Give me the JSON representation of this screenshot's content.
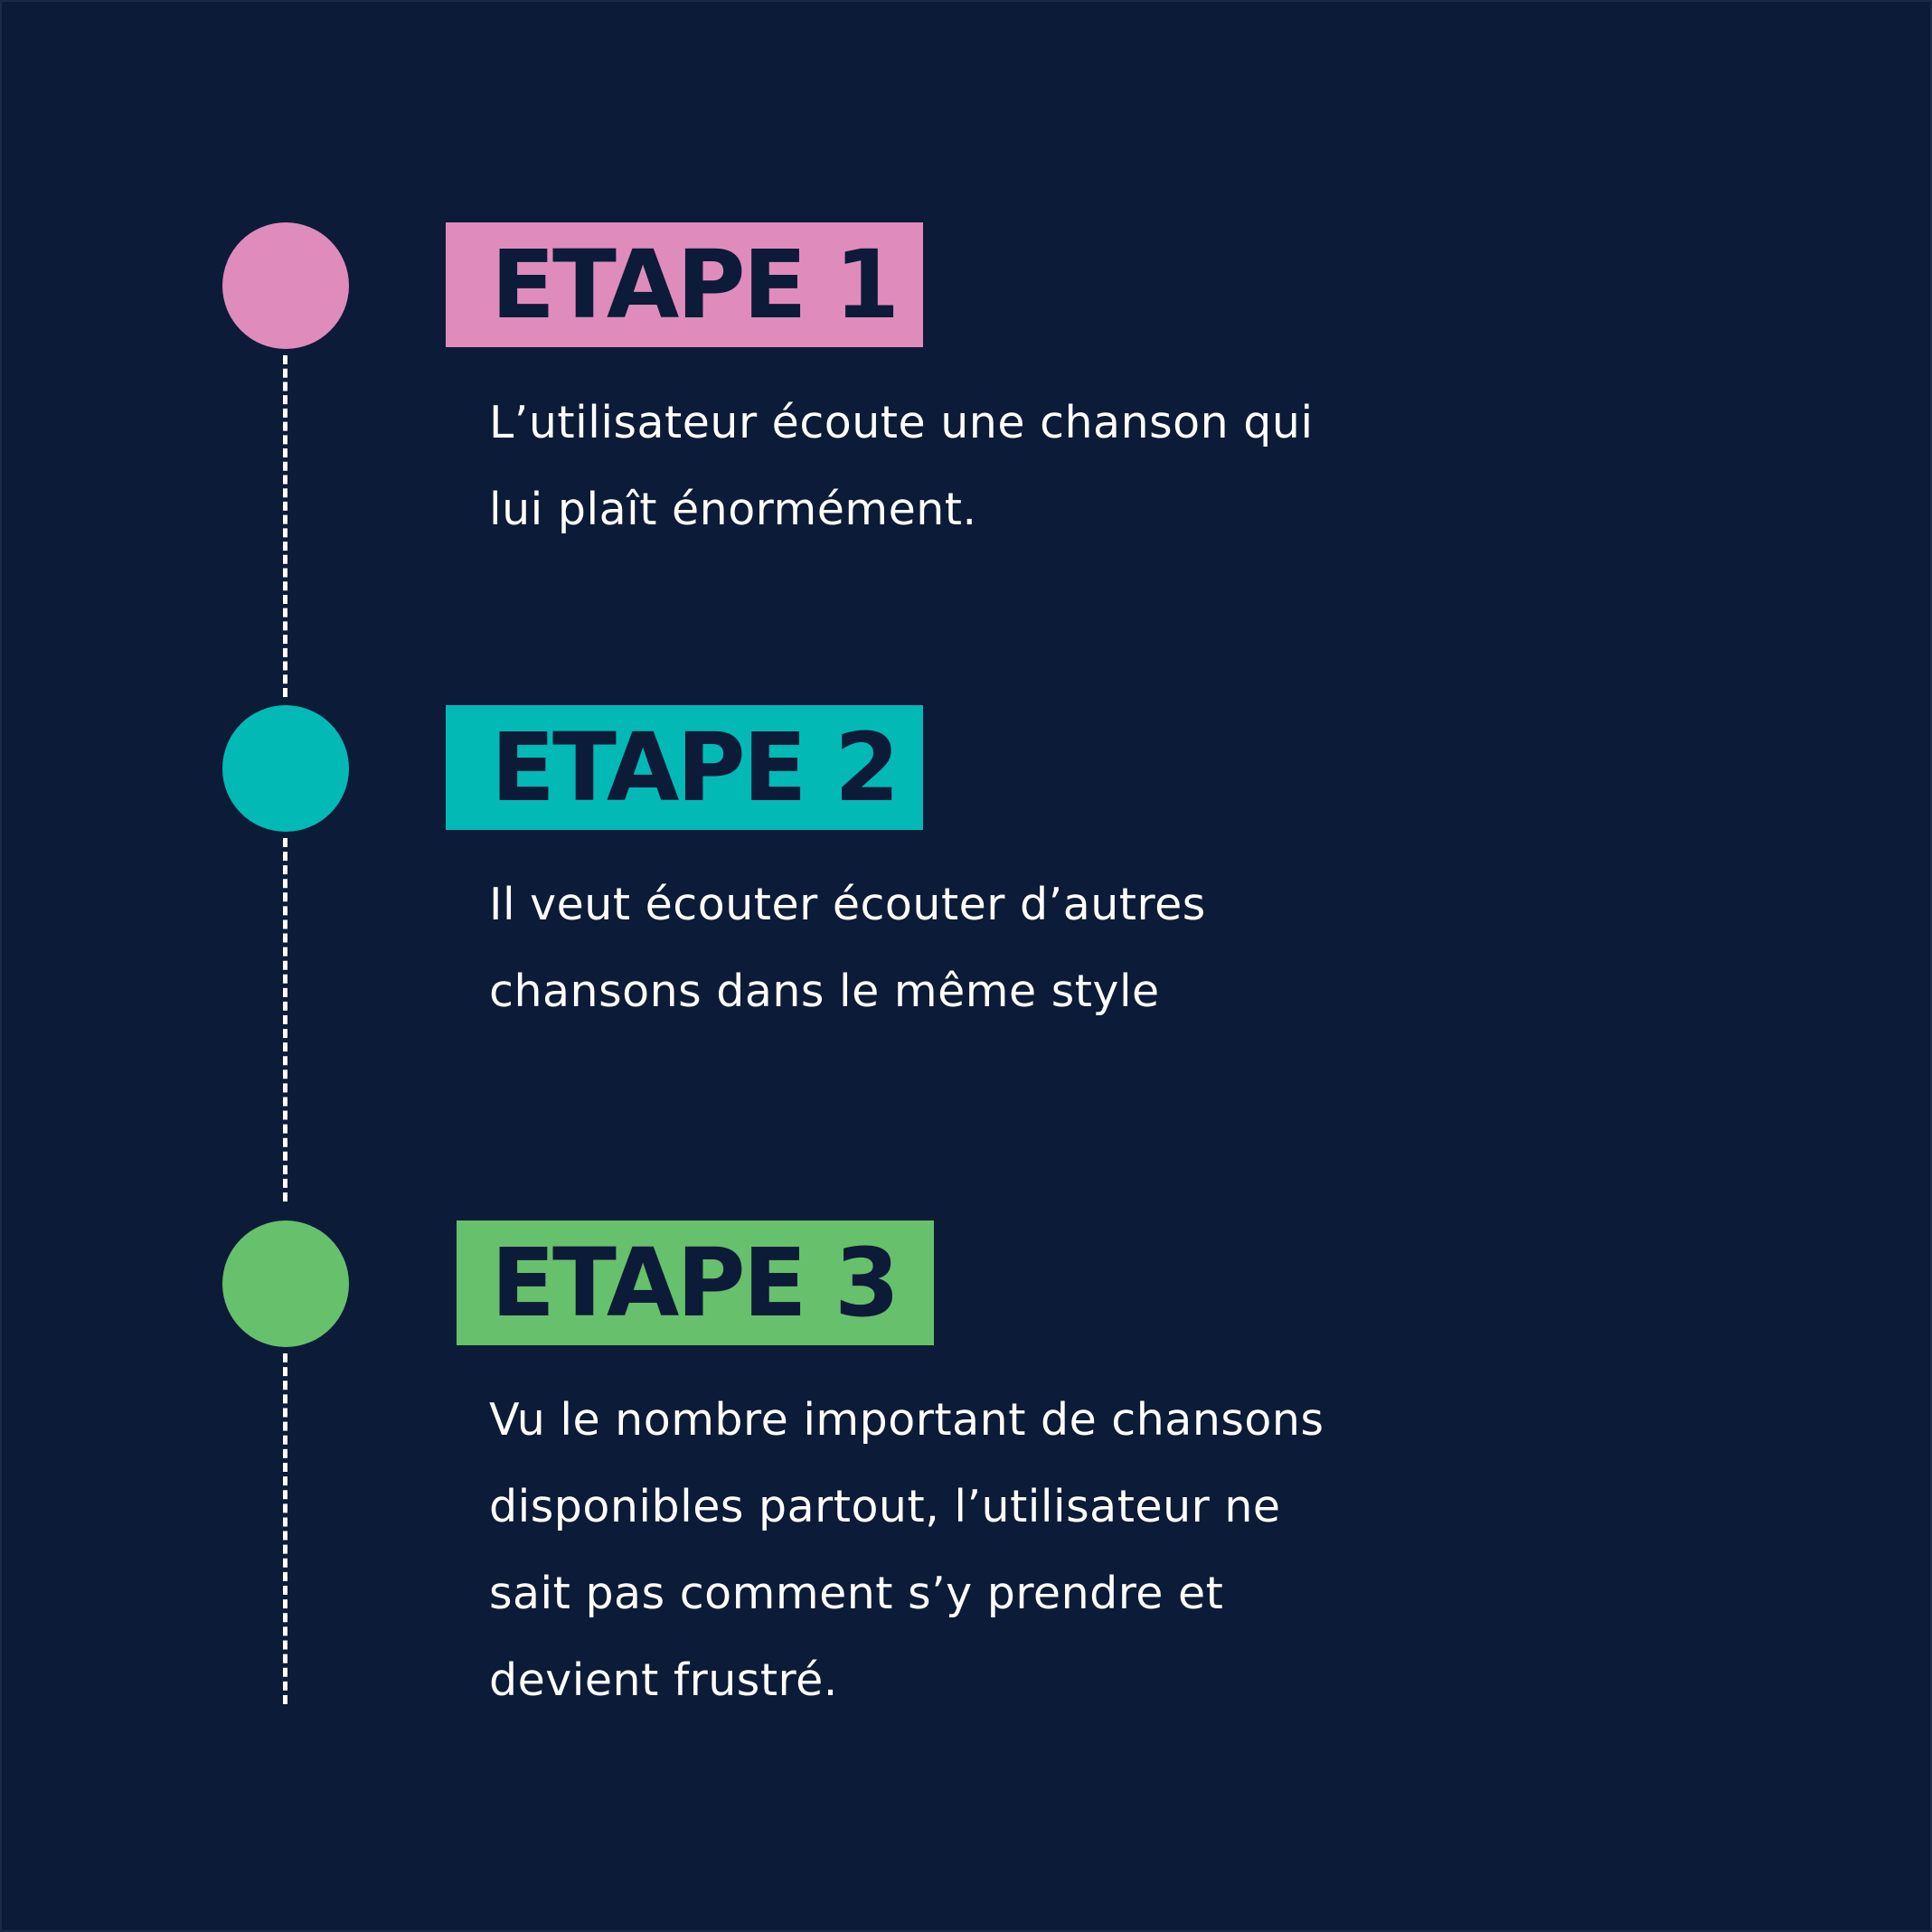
{
  "colors": {
    "background": "#0c1b37",
    "step_1": "#df8cbc",
    "step_2": "#03b9b6",
    "step_3": "#67c06b",
    "label_text": "#0c1b37",
    "description_text": "#ffffff",
    "connector": "#ffffff"
  },
  "steps": [
    {
      "label": "ETAPE 1",
      "color": "#df8cbc",
      "lines": [
        "L’utilisateur écoute une chanson qui",
        "lui plaît énormément."
      ]
    },
    {
      "label": "ETAPE 2",
      "color": "#03b9b6",
      "lines": [
        "Il veut écouter écouter d’autres",
        "chansons dans le même style"
      ]
    },
    {
      "label": "ETAPE 3",
      "color": "#67c06b",
      "lines": [
        "Vu le nombre important de chansons",
        "disponibles partout, l’utilisateur ne",
        "sait pas comment s’y prendre et",
        "devient frustré."
      ]
    }
  ]
}
